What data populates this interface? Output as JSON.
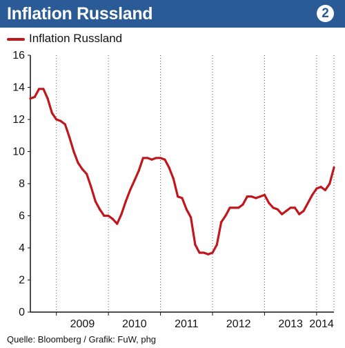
{
  "header": {
    "title": "Inflation Russland",
    "badge": "2"
  },
  "legend": {
    "label": "Inflation Russland"
  },
  "source": "Quelle: Bloomberg / Grafik: FuW, phg",
  "colors": {
    "header_bg": "#2a5b97",
    "series": "#c0161c",
    "grid": "#555555",
    "badge_text": "#2a5b97"
  },
  "chart_data": {
    "type": "line",
    "title": "Inflation Russland",
    "xlabel": "",
    "ylabel": "",
    "ylim": [
      0,
      16
    ],
    "xlim": [
      "2008-07",
      "2014-05"
    ],
    "yticks": [
      0,
      2,
      4,
      6,
      8,
      10,
      12,
      14,
      16
    ],
    "xtick_labels": [
      "2009",
      "2010",
      "2011",
      "2012",
      "2013",
      "2014"
    ],
    "grid": "vertical dotted",
    "legend_position": "top-left",
    "series": [
      {
        "name": "Inflation Russland",
        "color": "#c0161c",
        "x": [
          "2008-07",
          "2008-08",
          "2008-09",
          "2008-10",
          "2008-11",
          "2008-12",
          "2009-01",
          "2009-02",
          "2009-03",
          "2009-04",
          "2009-05",
          "2009-06",
          "2009-07",
          "2009-08",
          "2009-09",
          "2009-10",
          "2009-11",
          "2009-12",
          "2010-01",
          "2010-02",
          "2010-03",
          "2010-04",
          "2010-05",
          "2010-06",
          "2010-07",
          "2010-08",
          "2010-09",
          "2010-10",
          "2010-11",
          "2010-12",
          "2011-01",
          "2011-02",
          "2011-03",
          "2011-04",
          "2011-05",
          "2011-06",
          "2011-07",
          "2011-08",
          "2011-09",
          "2011-10",
          "2011-11",
          "2011-12",
          "2012-01",
          "2012-02",
          "2012-03",
          "2012-04",
          "2012-05",
          "2012-06",
          "2012-07",
          "2012-08",
          "2012-09",
          "2012-10",
          "2012-11",
          "2012-12",
          "2013-01",
          "2013-02",
          "2013-03",
          "2013-04",
          "2013-05",
          "2013-06",
          "2013-07",
          "2013-08",
          "2013-09",
          "2013-10",
          "2013-11",
          "2013-12",
          "2014-01",
          "2014-02",
          "2014-03",
          "2014-04",
          "2014-05"
        ],
        "values": [
          13.3,
          13.4,
          13.9,
          13.9,
          13.3,
          12.4,
          12.0,
          11.9,
          11.7,
          10.9,
          10.0,
          9.3,
          8.9,
          8.6,
          7.8,
          6.9,
          6.4,
          6.0,
          6.0,
          5.8,
          5.5,
          6.1,
          6.9,
          7.6,
          8.2,
          8.8,
          9.6,
          9.6,
          9.5,
          9.6,
          9.6,
          9.5,
          9.0,
          8.3,
          7.2,
          7.1,
          6.4,
          5.9,
          4.2,
          3.7,
          3.7,
          3.6,
          3.7,
          4.2,
          5.6,
          6.0,
          6.5,
          6.5,
          6.5,
          6.7,
          7.2,
          7.2,
          7.1,
          7.2,
          7.3,
          6.8,
          6.5,
          6.4,
          6.1,
          6.3,
          6.5,
          6.5,
          6.1,
          6.3,
          6.8,
          7.3,
          7.7,
          7.8,
          7.6,
          8.0,
          9.0
        ]
      }
    ]
  }
}
